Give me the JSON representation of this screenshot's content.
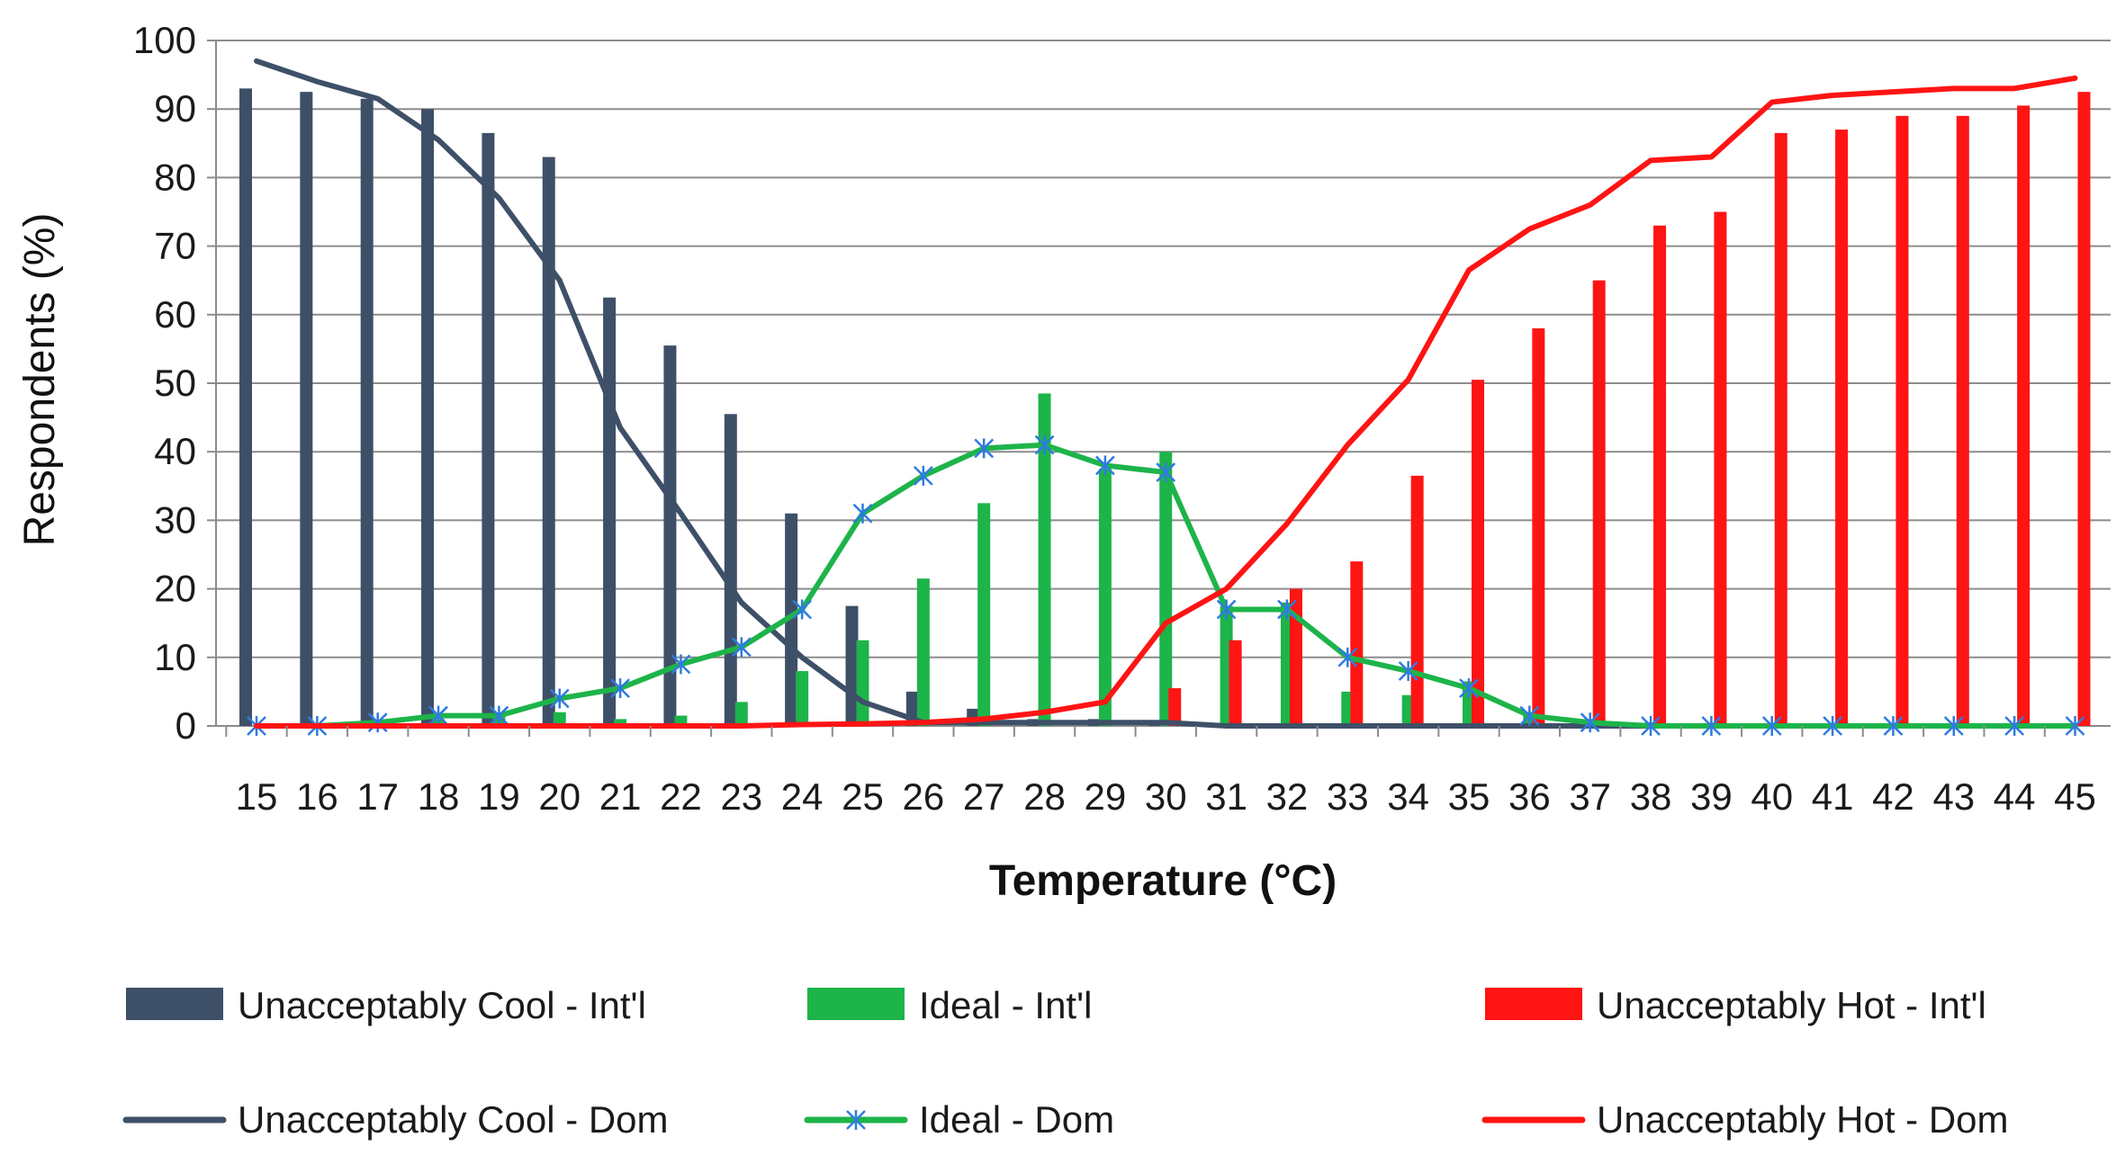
{
  "chart_data": {
    "type": "bar",
    "title": "",
    "xlabel": "Temperature (°C)",
    "ylabel": "Respondents (%)",
    "ylim": [
      0,
      100
    ],
    "yticks": [
      0,
      10,
      20,
      30,
      40,
      50,
      60,
      70,
      80,
      90,
      100
    ],
    "grid": true,
    "legend_position": "bottom",
    "categories": [
      "15",
      "16",
      "17",
      "18",
      "19",
      "20",
      "21",
      "22",
      "23",
      "24",
      "25",
      "26",
      "27",
      "28",
      "29",
      "30",
      "31",
      "32",
      "33",
      "34",
      "35",
      "36",
      "37",
      "38",
      "39",
      "40",
      "41",
      "42",
      "43",
      "44",
      "45"
    ],
    "bar_series": [
      {
        "name": "Unacceptably Cool - Int'l",
        "color": "#3e5068",
        "values": [
          93,
          92.5,
          91.5,
          90,
          86.5,
          83,
          62.5,
          55.5,
          45.5,
          31,
          17.5,
          5,
          2.5,
          1,
          1,
          0.5,
          0,
          0,
          0,
          0,
          0,
          0,
          0,
          0,
          0,
          0,
          0,
          0,
          0,
          0,
          0
        ]
      },
      {
        "name": "Ideal - Int'l",
        "color": "#1db44a",
        "values": [
          0,
          0,
          0.5,
          1,
          1.5,
          2,
          1,
          1.5,
          3.5,
          8,
          12.5,
          21.5,
          32.5,
          48.5,
          37.5,
          40,
          17.5,
          18,
          5,
          4.5,
          6.5,
          2,
          1,
          0.5,
          0,
          0,
          0,
          0,
          0,
          0,
          0
        ]
      },
      {
        "name": "Unacceptably Hot - Int'l",
        "color": "#ff1414",
        "values": [
          0,
          0,
          0,
          0,
          0,
          0,
          0,
          0,
          0,
          0,
          0,
          0,
          0,
          0,
          0,
          5.5,
          12.5,
          20,
          24,
          36.5,
          50.5,
          58,
          65,
          73,
          75,
          86.5,
          87,
          89,
          89,
          90.5,
          92.5
        ]
      }
    ],
    "line_series": [
      {
        "name": "Unacceptably Cool - Dom",
        "color": "#3e5068",
        "marker": "none",
        "values": [
          97,
          94,
          91.5,
          85.5,
          77,
          65,
          43.5,
          31,
          18,
          10,
          3.5,
          0.5,
          0.5,
          0.5,
          0.5,
          0.5,
          0,
          0,
          0,
          0,
          0,
          0,
          0,
          0,
          0,
          0,
          0,
          0,
          0,
          0,
          0
        ]
      },
      {
        "name": "Ideal - Dom",
        "color": "#1db44a",
        "marker": "star",
        "values": [
          0,
          0,
          0.5,
          1.5,
          1.5,
          4,
          5.5,
          9,
          11.5,
          17,
          31,
          36.5,
          40.5,
          41,
          38,
          37,
          17,
          17,
          10,
          8,
          5.5,
          1.5,
          0.5,
          0,
          0,
          0,
          0,
          0,
          0,
          0,
          0
        ]
      },
      {
        "name": "Unacceptably Hot - Dom",
        "color": "#ff1414",
        "marker": "none",
        "values": [
          0,
          0,
          0,
          0,
          0,
          0,
          0,
          0,
          0,
          0.2,
          0.3,
          0.5,
          1,
          2,
          3.5,
          15,
          20,
          29.5,
          41,
          50.5,
          66.5,
          72.5,
          76,
          82.5,
          83,
          91,
          92,
          92.5,
          93,
          93,
          94.5
        ]
      }
    ],
    "legend": [
      "Unacceptably Cool - Int'l",
      "Ideal - Int'l",
      "Unacceptably Hot - Int'l",
      "Unacceptably Cool - Dom",
      "Ideal - Dom",
      "Unacceptably Hot - Dom"
    ]
  }
}
